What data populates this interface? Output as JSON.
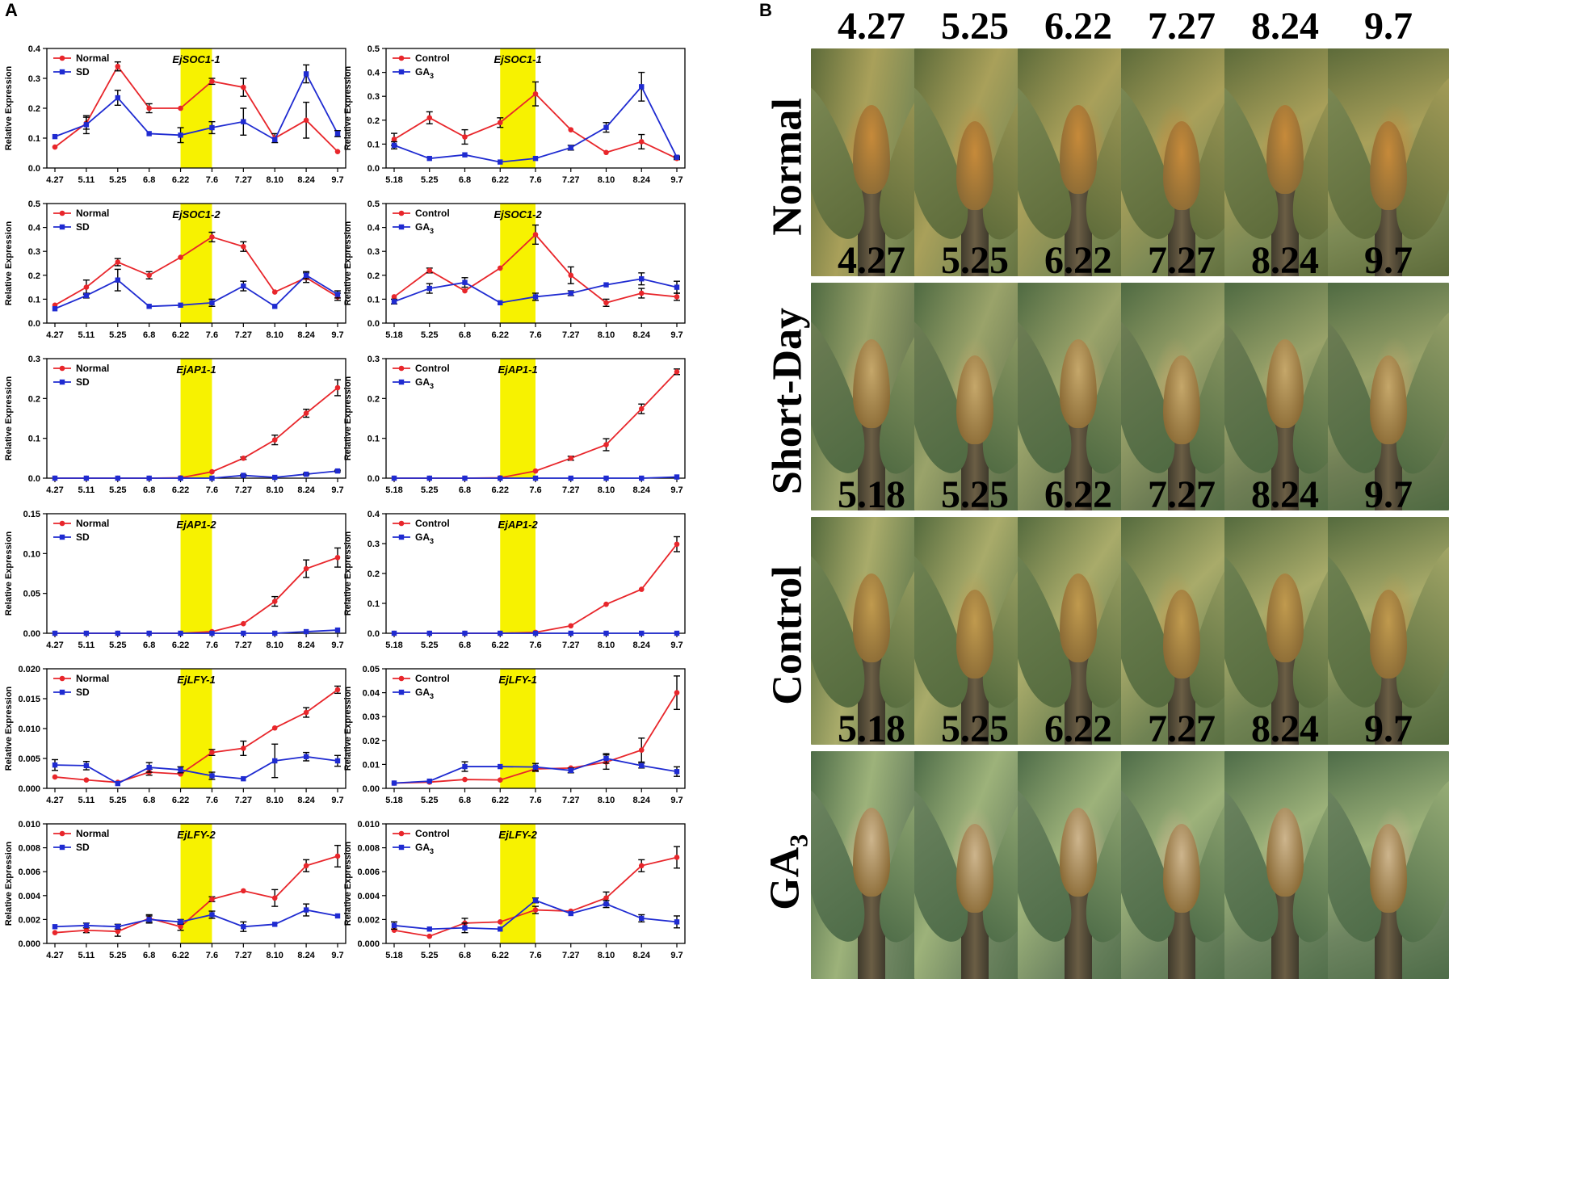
{
  "panel_a_letter": "A",
  "panel_b_letter": "B",
  "colors": {
    "series1": "#e8262b",
    "series2": "#1f2bd1",
    "highlight": "#f7f200"
  },
  "chart_data": [
    {
      "id": "c1",
      "type": "line",
      "title": "EjSOC1-1",
      "ylabel": "Relative Expression",
      "categories": [
        "4.27",
        "5.11",
        "5.25",
        "6.8",
        "6.22",
        "7.6",
        "7.27",
        "8.10",
        "8.24",
        "9.7"
      ],
      "ylim": [
        0,
        0.4
      ],
      "yticks": [
        "0.0",
        "0.1",
        "0.2",
        "0.3",
        "0.4"
      ],
      "highlight": [
        4,
        5
      ],
      "series": [
        {
          "name": "Normal",
          "values": [
            0.07,
            0.15,
            0.34,
            0.2,
            0.2,
            0.29,
            0.27,
            0.1,
            0.16,
            0.055
          ],
          "errors": [
            0,
            0.02,
            0.015,
            0.015,
            0,
            0.01,
            0.03,
            0.015,
            0.06,
            0
          ]
        },
        {
          "name": "SD",
          "values": [
            0.105,
            0.145,
            0.235,
            0.115,
            0.11,
            0.135,
            0.155,
            0.095,
            0.315,
            0.115
          ],
          "errors": [
            0,
            0.03,
            0.025,
            0,
            0.025,
            0.02,
            0.045,
            0,
            0.03,
            0.01
          ]
        }
      ]
    },
    {
      "id": "c2",
      "type": "line",
      "title": "EjSOC1-1",
      "ylabel": "Relative Expression",
      "categories": [
        "5.18",
        "5.25",
        "6.8",
        "6.22",
        "7.6",
        "7.27",
        "8.10",
        "8.24",
        "9.7"
      ],
      "ylim": [
        0,
        0.5
      ],
      "yticks": [
        "0.0",
        "0.1",
        "0.2",
        "0.3",
        "0.4",
        "0.5"
      ],
      "highlight": [
        3,
        4
      ],
      "series": [
        {
          "name": "Control",
          "values": [
            0.12,
            0.21,
            0.13,
            0.19,
            0.31,
            0.16,
            0.065,
            0.11,
            0.04
          ],
          "errors": [
            0.025,
            0.025,
            0.03,
            0.02,
            0.05,
            0,
            0,
            0.03,
            0.005
          ]
        },
        {
          "name": "GA3",
          "values": [
            0.095,
            0.04,
            0.055,
            0.025,
            0.04,
            0.085,
            0.17,
            0.34,
            0.045
          ],
          "errors": [
            0.015,
            0,
            0,
            0,
            0,
            0.01,
            0.02,
            0.06,
            0.005
          ]
        }
      ]
    },
    {
      "id": "c3",
      "type": "line",
      "title": "EjSOC1-2",
      "ylabel": "Relative Expression",
      "categories": [
        "4.27",
        "5.11",
        "5.25",
        "6.8",
        "6.22",
        "7.6",
        "7.27",
        "8.10",
        "8.24",
        "9.7"
      ],
      "ylim": [
        0,
        0.5
      ],
      "yticks": [
        "0.0",
        "0.1",
        "0.2",
        "0.3",
        "0.4",
        "0.5"
      ],
      "highlight": [
        4,
        5
      ],
      "series": [
        {
          "name": "Normal",
          "values": [
            0.075,
            0.15,
            0.255,
            0.2,
            0.275,
            0.36,
            0.32,
            0.13,
            0.19,
            0.11
          ],
          "errors": [
            0,
            0.03,
            0.015,
            0.015,
            0,
            0.02,
            0.02,
            0,
            0.02,
            0.015
          ]
        },
        {
          "name": "SD",
          "values": [
            0.06,
            0.115,
            0.18,
            0.07,
            0.075,
            0.085,
            0.155,
            0.07,
            0.2,
            0.12
          ],
          "errors": [
            0,
            0.01,
            0.045,
            0,
            0,
            0.015,
            0.02,
            0,
            0.015,
            0.015
          ]
        }
      ]
    },
    {
      "id": "c4",
      "type": "line",
      "title": "EjSOC1-2",
      "ylabel": "Relative Expression",
      "categories": [
        "5.18",
        "5.25",
        "6.8",
        "6.22",
        "7.6",
        "7.27",
        "8.10",
        "8.24",
        "9.7"
      ],
      "ylim": [
        0,
        0.5
      ],
      "yticks": [
        "0.0",
        "0.1",
        "0.2",
        "0.3",
        "0.4",
        "0.5"
      ],
      "highlight": [
        3,
        4
      ],
      "series": [
        {
          "name": "Control",
          "values": [
            0.11,
            0.22,
            0.135,
            0.23,
            0.37,
            0.2,
            0.085,
            0.125,
            0.11
          ],
          "errors": [
            0,
            0.01,
            0,
            0,
            0.04,
            0.035,
            0.015,
            0.02,
            0.015
          ]
        },
        {
          "name": "GA3",
          "values": [
            0.09,
            0.145,
            0.17,
            0.085,
            0.11,
            0.125,
            0.16,
            0.185,
            0.15
          ],
          "errors": [
            0.01,
            0.02,
            0.02,
            0,
            0.015,
            0.01,
            0,
            0.025,
            0.025
          ]
        }
      ]
    },
    {
      "id": "c5",
      "type": "line",
      "title": "EjAP1-1",
      "ylabel": "Relative Expression",
      "categories": [
        "4.27",
        "5.11",
        "5.25",
        "6.8",
        "6.22",
        "7.6",
        "7.27",
        "8.10",
        "8.24",
        "9.7"
      ],
      "ylim": [
        0,
        0.3
      ],
      "yticks": [
        "0.0",
        "0.1",
        "0.2",
        "0.3"
      ],
      "highlight": [
        4,
        5
      ],
      "series": [
        {
          "name": "Normal",
          "values": [
            0,
            0,
            0,
            0,
            0.001,
            0.016,
            0.05,
            0.096,
            0.163,
            0.227
          ],
          "errors": [
            0,
            0,
            0,
            0,
            0,
            0,
            0.003,
            0.012,
            0.01,
            0.02
          ]
        },
        {
          "name": "SD",
          "values": [
            0,
            0,
            0,
            0,
            0,
            0,
            0.007,
            0.002,
            0.01,
            0.018
          ],
          "errors": [
            0,
            0,
            0,
            0,
            0,
            0,
            0.002,
            0,
            0.002,
            0.002
          ]
        }
      ]
    },
    {
      "id": "c6",
      "type": "line",
      "title": "EjAP1-1",
      "ylabel": "Relative Expression",
      "categories": [
        "5.18",
        "5.25",
        "6.8",
        "6.22",
        "7.6",
        "7.27",
        "8.10",
        "8.24",
        "9.7"
      ],
      "ylim": [
        0,
        0.3
      ],
      "yticks": [
        "0.0",
        "0.1",
        "0.2",
        "0.3"
      ],
      "highlight": [
        3,
        4
      ],
      "series": [
        {
          "name": "Control",
          "values": [
            0,
            0,
            0,
            0.001,
            0.018,
            0.05,
            0.084,
            0.174,
            0.267
          ],
          "errors": [
            0,
            0,
            0,
            0,
            0,
            0.005,
            0.015,
            0.012,
            0.007
          ]
        },
        {
          "name": "GA3",
          "values": [
            0,
            0,
            0,
            0,
            0,
            0,
            0,
            0,
            0.003
          ],
          "errors": [
            0,
            0,
            0,
            0,
            0,
            0,
            0,
            0,
            0
          ]
        }
      ]
    },
    {
      "id": "c7",
      "type": "line",
      "title": "EjAP1-2",
      "ylabel": "Relative Expression",
      "categories": [
        "4.27",
        "5.11",
        "5.25",
        "6.8",
        "6.22",
        "7.6",
        "7.27",
        "8.10",
        "8.24",
        "9.7"
      ],
      "ylim": [
        0,
        0.15
      ],
      "yticks": [
        "0.00",
        "0.05",
        "0.10",
        "0.15"
      ],
      "highlight": [
        4,
        5
      ],
      "series": [
        {
          "name": "Normal",
          "values": [
            0,
            0,
            0,
            0,
            0,
            0.002,
            0.012,
            0.04,
            0.081,
            0.095
          ],
          "errors": [
            0,
            0,
            0,
            0,
            0,
            0,
            0,
            0.006,
            0.011,
            0.012
          ]
        },
        {
          "name": "SD",
          "values": [
            0,
            0,
            0,
            0,
            0,
            0,
            0,
            0,
            0.002,
            0.004
          ],
          "errors": [
            0,
            0,
            0,
            0,
            0,
            0,
            0,
            0,
            0,
            0
          ]
        }
      ]
    },
    {
      "id": "c8",
      "type": "line",
      "title": "EjAP1-2",
      "ylabel": "Relative Expression",
      "categories": [
        "5.18",
        "5.25",
        "6.8",
        "6.22",
        "7.6",
        "7.27",
        "8.10",
        "8.24",
        "9.7"
      ],
      "ylim": [
        0,
        0.4
      ],
      "yticks": [
        "0.0",
        "0.1",
        "0.2",
        "0.3",
        "0.4"
      ],
      "highlight": [
        3,
        4
      ],
      "series": [
        {
          "name": "Control",
          "values": [
            0,
            0,
            0,
            0,
            0.003,
            0.025,
            0.097,
            0.147,
            0.298
          ],
          "errors": [
            0,
            0,
            0,
            0,
            0,
            0,
            0,
            0,
            0.025
          ]
        },
        {
          "name": "GA3",
          "values": [
            0,
            0,
            0,
            0,
            0,
            0,
            0,
            0,
            0
          ],
          "errors": [
            0,
            0,
            0,
            0,
            0,
            0,
            0,
            0,
            0
          ]
        }
      ]
    },
    {
      "id": "c9",
      "type": "line",
      "title": "EjLFY-1",
      "ylabel": "Relative Expression",
      "categories": [
        "4.27",
        "5.11",
        "5.25",
        "6.8",
        "6.22",
        "7.6",
        "7.27",
        "8.10",
        "8.24",
        "9.7"
      ],
      "ylim": [
        0,
        0.02
      ],
      "yticks": [
        "0.000",
        "0.005",
        "0.010",
        "0.015",
        "0.020"
      ],
      "highlight": [
        4,
        5
      ],
      "series": [
        {
          "name": "Normal",
          "values": [
            0.0019,
            0.0014,
            0.001,
            0.0027,
            0.0024,
            0.006,
            0.0067,
            0.0101,
            0.0127,
            0.0165
          ],
          "errors": [
            0,
            0,
            0,
            0.0005,
            0,
            0.0005,
            0.0012,
            0,
            0.0008,
            0.0006
          ]
        },
        {
          "name": "SD",
          "values": [
            0.0039,
            0.0038,
            0.0008,
            0.0035,
            0.0031,
            0.0021,
            0.0016,
            0.0046,
            0.0053,
            0.0046
          ],
          "errors": [
            0.0009,
            0.0007,
            0,
            0.0008,
            0.0005,
            0.0006,
            0,
            0.0028,
            0.0007,
            0.0009
          ]
        }
      ]
    },
    {
      "id": "c10",
      "type": "line",
      "title": "EjLFY-1",
      "ylabel": "Relative Expression",
      "categories": [
        "5.18",
        "5.25",
        "6.8",
        "6.22",
        "7.6",
        "7.27",
        "8.10",
        "8.24",
        "9.7"
      ],
      "ylim": [
        0,
        0.05
      ],
      "yticks": [
        "0.00",
        "0.01",
        "0.02",
        "0.03",
        "0.04",
        "0.05"
      ],
      "highlight": [
        3,
        4
      ],
      "series": [
        {
          "name": "Control",
          "values": [
            0.0022,
            0.0026,
            0.0037,
            0.0035,
            0.0081,
            0.0085,
            0.011,
            0.016,
            0.04
          ],
          "errors": [
            0,
            0,
            0,
            0,
            0.001,
            0,
            0.003,
            0.005,
            0.007
          ]
        },
        {
          "name": "GA3",
          "values": [
            0.0022,
            0.003,
            0.0091,
            0.0091,
            0.0089,
            0.0075,
            0.0125,
            0.0095,
            0.007
          ],
          "errors": [
            0,
            0,
            0.002,
            0,
            0.0015,
            0.001,
            0.002,
            0.001,
            0.002
          ]
        }
      ]
    },
    {
      "id": "c11",
      "type": "line",
      "title": "EjLFY-2",
      "ylabel": "Relative Expression",
      "categories": [
        "4.27",
        "5.11",
        "5.25",
        "6.8",
        "6.22",
        "7.6",
        "7.27",
        "8.10",
        "8.24",
        "9.7"
      ],
      "ylim": [
        0,
        0.01
      ],
      "yticks": [
        "0.000",
        "0.002",
        "0.004",
        "0.006",
        "0.008",
        "0.010"
      ],
      "highlight": [
        4,
        5
      ],
      "series": [
        {
          "name": "Normal",
          "values": [
            0.0009,
            0.0011,
            0.001,
            0.0021,
            0.0014,
            0.0037,
            0.0044,
            0.0038,
            0.0065,
            0.0073
          ],
          "errors": [
            0,
            0.0002,
            0.0004,
            0.0003,
            0.0003,
            0.0002,
            0,
            0.0007,
            0.0005,
            0.0009
          ]
        },
        {
          "name": "SD",
          "values": [
            0.0014,
            0.0015,
            0.0014,
            0.002,
            0.0018,
            0.0024,
            0.0014,
            0.0016,
            0.0028,
            0.0023
          ],
          "errors": [
            0,
            0.0002,
            0.0002,
            0.0003,
            0.0002,
            0.0003,
            0.0004,
            0,
            0.0005,
            0
          ]
        }
      ]
    },
    {
      "id": "c12",
      "type": "line",
      "title": "EjLFY-2",
      "ylabel": "Relative Expression",
      "categories": [
        "5.18",
        "5.25",
        "6.8",
        "6.22",
        "7.6",
        "7.27",
        "8.10",
        "8.24",
        "9.7"
      ],
      "ylim": [
        0,
        0.01
      ],
      "yticks": [
        "0.000",
        "0.002",
        "0.004",
        "0.006",
        "0.008",
        "0.010"
      ],
      "highlight": [
        3,
        4
      ],
      "series": [
        {
          "name": "Control",
          "values": [
            0.0011,
            0.0006,
            0.0017,
            0.0018,
            0.0028,
            0.0027,
            0.0038,
            0.0065,
            0.0072
          ],
          "errors": [
            0,
            0,
            0.0004,
            0,
            0.0003,
            0,
            0.0005,
            0.0005,
            0.0009
          ]
        },
        {
          "name": "GA3",
          "values": [
            0.0015,
            0.0012,
            0.0013,
            0.0012,
            0.0036,
            0.0025,
            0.0033,
            0.0021,
            0.0018
          ],
          "errors": [
            0.0003,
            0,
            0.0004,
            0,
            0.0002,
            0,
            0.0003,
            0.0003,
            0.0005
          ]
        }
      ]
    }
  ],
  "photo_grid": {
    "rows": [
      {
        "label": "Normal",
        "dates": [
          "4.27",
          "5.25",
          "6.22",
          "7.27",
          "8.24",
          "9.7"
        ]
      },
      {
        "label": "Short-Day",
        "dates": [
          "4.27",
          "5.25",
          "6.22",
          "7.27",
          "8.24",
          "9.7"
        ]
      },
      {
        "label": "Control",
        "dates": [
          "5.18",
          "5.25",
          "6.22",
          "7.27",
          "8.24",
          "9.7"
        ]
      },
      {
        "label": "GA",
        "label_sub": "3",
        "dates": [
          "5.18",
          "5.25",
          "6.22",
          "7.27",
          "8.24",
          "9.7"
        ]
      }
    ]
  }
}
